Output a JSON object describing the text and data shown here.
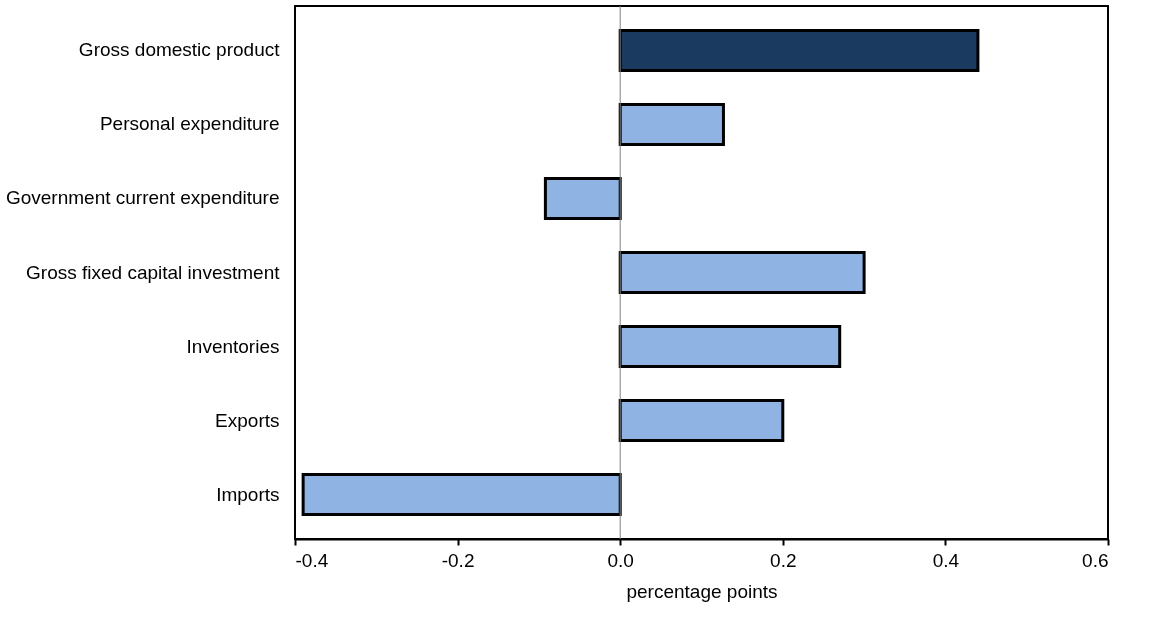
{
  "chart_data": {
    "type": "bar",
    "orientation": "horizontal",
    "xlabel": "percentage points",
    "categories": [
      "Gross domestic product",
      "Personal expenditure",
      "Government current expenditure",
      "Gross fixed capital investment",
      "Inventories",
      "Exports",
      "Imports"
    ],
    "values": [
      0.44,
      0.127,
      -0.092,
      0.3,
      0.27,
      0.2,
      -0.39
    ],
    "colors": [
      "#1a3a60",
      "#8fb4e3",
      "#8fb4e3",
      "#8fb4e3",
      "#8fb4e3",
      "#8fb4e3",
      "#8fb4e3"
    ],
    "xlim": [
      -0.4,
      0.6
    ],
    "xticks": [
      {
        "value": -0.4,
        "label": "-0.4"
      },
      {
        "value": -0.2,
        "label": "-0.2"
      },
      {
        "value": 0,
        "label": "0.0"
      },
      {
        "value": 0.2,
        "label": "0.2"
      },
      {
        "value": 0.4,
        "label": "0.4"
      },
      {
        "value": 0.6,
        "label": "0.6"
      }
    ],
    "ref_lines": [
      {
        "axis": "x",
        "value": 0,
        "color": "#808080"
      }
    ],
    "grid": false
  }
}
